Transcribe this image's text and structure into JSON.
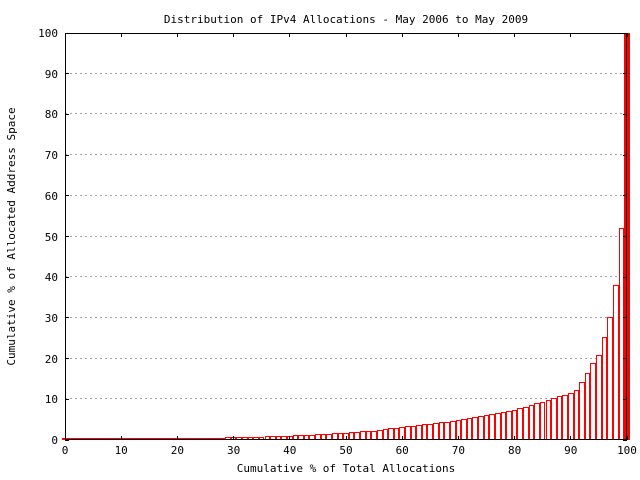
{
  "chart_data": {
    "type": "bar",
    "title": "Distribution of IPv4 Allocations - May 2006 to May 2009",
    "xlabel": "Cumulative % of Total Allocations",
    "ylabel": "Cumulative % of Allocated Address Space",
    "xlim": [
      0,
      100
    ],
    "ylim": [
      0,
      100
    ],
    "x_ticks": [
      0,
      10,
      20,
      30,
      40,
      50,
      60,
      70,
      80,
      90,
      100
    ],
    "y_ticks": [
      0,
      10,
      20,
      30,
      40,
      50,
      60,
      70,
      80,
      90,
      100
    ],
    "grid": "horizontal-dashed",
    "legend": "none",
    "bar_border_color": "#ff0000",
    "bar_fill_color": "#ffffff",
    "grid_color": "#a2a2a2",
    "axis_color": "#000000",
    "background_color": "#ffffff",
    "x": [
      0,
      1,
      2,
      3,
      4,
      5,
      6,
      7,
      8,
      9,
      10,
      11,
      12,
      13,
      14,
      15,
      16,
      17,
      18,
      19,
      20,
      21,
      22,
      23,
      24,
      25,
      26,
      27,
      28,
      29,
      30,
      31,
      32,
      33,
      34,
      35,
      36,
      37,
      38,
      39,
      40,
      41,
      42,
      43,
      44,
      45,
      46,
      47,
      48,
      49,
      50,
      51,
      52,
      53,
      54,
      55,
      56,
      57,
      58,
      59,
      60,
      61,
      62,
      63,
      64,
      65,
      66,
      67,
      68,
      69,
      70,
      71,
      72,
      73,
      74,
      75,
      76,
      77,
      78,
      79,
      80,
      81,
      82,
      83,
      84,
      85,
      86,
      87,
      88,
      89,
      90,
      91,
      92,
      93,
      94,
      95,
      96,
      97,
      98,
      99,
      100
    ],
    "values": [
      0.05,
      0.06,
      0.07,
      0.08,
      0.09,
      0.1,
      0.11,
      0.12,
      0.13,
      0.14,
      0.15,
      0.17,
      0.18,
      0.2,
      0.21,
      0.23,
      0.24,
      0.26,
      0.27,
      0.29,
      0.3,
      0.34,
      0.37,
      0.41,
      0.44,
      0.48,
      0.51,
      0.55,
      0.58,
      0.62,
      0.65,
      0.69,
      0.73,
      0.77,
      0.81,
      0.85,
      0.9,
      0.95,
      1.0,
      1.05,
      1.1,
      1.16,
      1.22,
      1.28,
      1.34,
      1.4,
      1.48,
      1.56,
      1.64,
      1.72,
      1.8,
      1.9,
      2.0,
      2.1,
      2.2,
      2.3,
      2.48,
      2.66,
      2.84,
      3.02,
      3.2,
      3.36,
      3.52,
      3.68,
      3.84,
      4.0,
      4.18,
      4.36,
      4.54,
      4.72,
      4.9,
      5.16,
      5.42,
      5.68,
      5.94,
      6.2,
      6.44,
      6.68,
      6.92,
      7.16,
      7.4,
      7.8,
      8.2,
      8.6,
      9.0,
      9.4,
      9.84,
      10.28,
      10.72,
      11.16,
      11.6,
      12.3,
      14.3,
      16.4,
      18.8,
      20.9,
      25.4,
      30.3,
      38.1,
      52.0,
      100.0
    ]
  }
}
